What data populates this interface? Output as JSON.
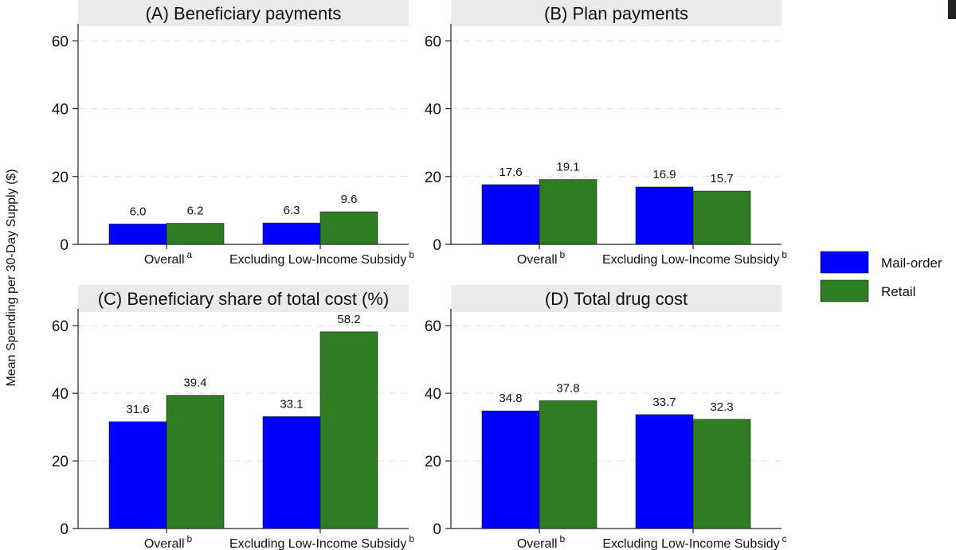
{
  "chart_data": {
    "type": "bar",
    "ylabel": "Mean Spending per 30-Day Supply ($)",
    "ylim": [
      0,
      65
    ],
    "yticks": [
      0,
      20,
      40,
      60
    ],
    "legend": {
      "position": "right",
      "entries": [
        {
          "name": "Mail-order",
          "color": "#0000FF"
        },
        {
          "name": "Retail",
          "color": "#2E7D24"
        }
      ]
    },
    "panels": [
      {
        "title": "(A) Beneficiary payments",
        "categories": [
          {
            "label": "Overall",
            "superscript": "a"
          },
          {
            "label": "Excluding Low-Income Subsidy",
            "superscript": "b"
          }
        ],
        "series": [
          {
            "name": "Mail-order",
            "values": [
              6.0,
              6.3
            ],
            "labels": [
              "6.0",
              "6.3"
            ]
          },
          {
            "name": "Retail",
            "values": [
              6.2,
              9.6
            ],
            "labels": [
              "6.2",
              "9.6"
            ]
          }
        ]
      },
      {
        "title": "(B) Plan payments",
        "categories": [
          {
            "label": "Overall",
            "superscript": "b"
          },
          {
            "label": "Excluding Low-Income Subsidy",
            "superscript": "b"
          }
        ],
        "series": [
          {
            "name": "Mail-order",
            "values": [
              17.6,
              16.9
            ],
            "labels": [
              "17.6",
              "16.9"
            ]
          },
          {
            "name": "Retail",
            "values": [
              19.1,
              15.7
            ],
            "labels": [
              "19.1",
              "15.7"
            ]
          }
        ]
      },
      {
        "title": "(C) Beneficiary share of total cost (%)",
        "categories": [
          {
            "label": "Overall",
            "superscript": "b"
          },
          {
            "label": "Excluding Low-Income Subsidy",
            "superscript": "b"
          }
        ],
        "series": [
          {
            "name": "Mail-order",
            "values": [
              31.6,
              33.1
            ],
            "labels": [
              "31.6",
              "33.1"
            ]
          },
          {
            "name": "Retail",
            "values": [
              39.4,
              58.2
            ],
            "labels": [
              "39.4",
              "58.2"
            ]
          }
        ]
      },
      {
        "title": "(D) Total drug cost",
        "categories": [
          {
            "label": "Overall",
            "superscript": "b"
          },
          {
            "label": "Excluding Low-Income Subsidy",
            "superscript": "c"
          }
        ],
        "series": [
          {
            "name": "Mail-order",
            "values": [
              34.8,
              33.7
            ],
            "labels": [
              "34.8",
              "33.7"
            ]
          },
          {
            "name": "Retail",
            "values": [
              37.8,
              32.3
            ],
            "labels": [
              "37.8",
              "32.3"
            ]
          }
        ]
      }
    ]
  }
}
